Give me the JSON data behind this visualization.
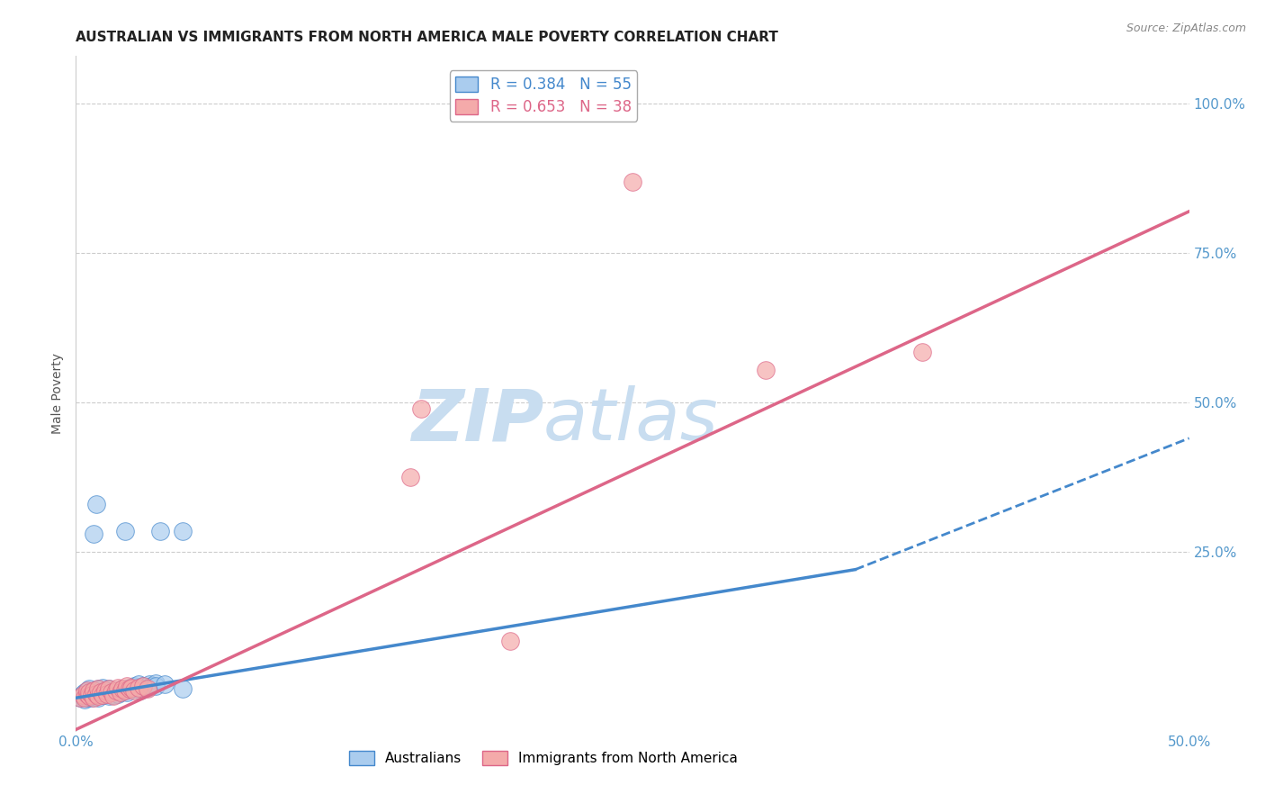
{
  "title": "AUSTRALIAN VS IMMIGRANTS FROM NORTH AMERICA MALE POVERTY CORRELATION CHART",
  "source": "Source: ZipAtlas.com",
  "ylabel": "Male Poverty",
  "xlim": [
    0.0,
    0.5
  ],
  "ylim": [
    -0.05,
    1.08
  ],
  "xticks": [
    0.0,
    0.1,
    0.2,
    0.3,
    0.4,
    0.5
  ],
  "xticklabels": [
    "0.0%",
    "",
    "",
    "",
    "",
    "50.0%"
  ],
  "ytick_positions": [
    0.0,
    0.25,
    0.5,
    0.75,
    1.0
  ],
  "ytick_labels_right": [
    "",
    "25.0%",
    "50.0%",
    "75.0%",
    "100.0%"
  ],
  "watermark_zip": "ZIP",
  "watermark_atlas": "atlas",
  "legend_line1": "R = 0.384   N = 55",
  "legend_line2": "R = 0.653   N = 38",
  "legend_labels": [
    "Australians",
    "Immigrants from North America"
  ],
  "aus_scatter": [
    [
      0.002,
      0.005
    ],
    [
      0.003,
      0.008
    ],
    [
      0.003,
      0.012
    ],
    [
      0.004,
      0.003
    ],
    [
      0.004,
      0.015
    ],
    [
      0.005,
      0.005
    ],
    [
      0.005,
      0.01
    ],
    [
      0.005,
      0.018
    ],
    [
      0.006,
      0.008
    ],
    [
      0.006,
      0.014
    ],
    [
      0.006,
      0.02
    ],
    [
      0.007,
      0.005
    ],
    [
      0.007,
      0.012
    ],
    [
      0.008,
      0.008
    ],
    [
      0.008,
      0.015
    ],
    [
      0.009,
      0.01
    ],
    [
      0.009,
      0.018
    ],
    [
      0.01,
      0.005
    ],
    [
      0.01,
      0.012
    ],
    [
      0.01,
      0.02
    ],
    [
      0.011,
      0.015
    ],
    [
      0.012,
      0.01
    ],
    [
      0.012,
      0.022
    ],
    [
      0.013,
      0.018
    ],
    [
      0.014,
      0.012
    ],
    [
      0.015,
      0.008
    ],
    [
      0.015,
      0.02
    ],
    [
      0.016,
      0.015
    ],
    [
      0.017,
      0.01
    ],
    [
      0.018,
      0.018
    ],
    [
      0.019,
      0.012
    ],
    [
      0.02,
      0.015
    ],
    [
      0.021,
      0.02
    ],
    [
      0.022,
      0.018
    ],
    [
      0.023,
      0.015
    ],
    [
      0.024,
      0.022
    ],
    [
      0.025,
      0.02
    ],
    [
      0.026,
      0.025
    ],
    [
      0.027,
      0.022
    ],
    [
      0.028,
      0.02
    ],
    [
      0.028,
      0.028
    ],
    [
      0.029,
      0.018
    ],
    [
      0.03,
      0.025
    ],
    [
      0.032,
      0.022
    ],
    [
      0.033,
      0.028
    ],
    [
      0.034,
      0.025
    ],
    [
      0.036,
      0.03
    ],
    [
      0.009,
      0.33
    ],
    [
      0.038,
      0.285
    ],
    [
      0.048,
      0.285
    ],
    [
      0.008,
      0.28
    ],
    [
      0.022,
      0.285
    ],
    [
      0.048,
      0.02
    ],
    [
      0.036,
      0.025
    ],
    [
      0.04,
      0.028
    ]
  ],
  "imm_scatter": [
    [
      0.002,
      0.005
    ],
    [
      0.003,
      0.01
    ],
    [
      0.004,
      0.005
    ],
    [
      0.005,
      0.012
    ],
    [
      0.005,
      0.018
    ],
    [
      0.006,
      0.008
    ],
    [
      0.006,
      0.015
    ],
    [
      0.007,
      0.01
    ],
    [
      0.008,
      0.005
    ],
    [
      0.008,
      0.018
    ],
    [
      0.009,
      0.012
    ],
    [
      0.01,
      0.008
    ],
    [
      0.01,
      0.02
    ],
    [
      0.011,
      0.015
    ],
    [
      0.012,
      0.01
    ],
    [
      0.013,
      0.018
    ],
    [
      0.014,
      0.012
    ],
    [
      0.015,
      0.02
    ],
    [
      0.016,
      0.015
    ],
    [
      0.017,
      0.008
    ],
    [
      0.018,
      0.018
    ],
    [
      0.019,
      0.022
    ],
    [
      0.02,
      0.015
    ],
    [
      0.021,
      0.02
    ],
    [
      0.022,
      0.018
    ],
    [
      0.023,
      0.025
    ],
    [
      0.024,
      0.02
    ],
    [
      0.025,
      0.022
    ],
    [
      0.026,
      0.018
    ],
    [
      0.028,
      0.022
    ],
    [
      0.03,
      0.025
    ],
    [
      0.032,
      0.02
    ],
    [
      0.25,
      0.87
    ],
    [
      0.31,
      0.555
    ],
    [
      0.38,
      0.585
    ],
    [
      0.15,
      0.375
    ],
    [
      0.155,
      0.49
    ],
    [
      0.195,
      0.1
    ]
  ],
  "aus_line": {
    "x0": 0.0,
    "y0": 0.005,
    "x1": 0.35,
    "y1": 0.22,
    "x2": 0.5,
    "y2": 0.44
  },
  "imm_line": {
    "x0": 0.0,
    "y0": -0.048,
    "x1": 0.5,
    "y1": 0.82
  },
  "scatter_color_aus": "#aaccee",
  "scatter_color_imm": "#f4aaaa",
  "line_color_aus": "#4488cc",
  "line_color_imm": "#dd6688",
  "grid_color": "#cccccc",
  "title_color": "#222222",
  "axis_label_color": "#555555",
  "tick_label_color": "#5599cc",
  "watermark_color_zip": "#c8ddf0",
  "watermark_color_atlas": "#c8ddf0"
}
